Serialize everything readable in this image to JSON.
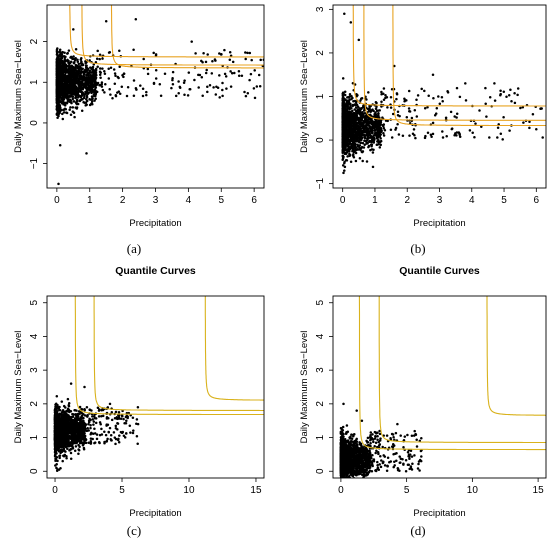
{
  "chart_data": [
    {
      "type": "scatter",
      "panel": "a",
      "caption": "(a)",
      "title": "",
      "xlabel": "Precipitation",
      "ylabel": "Daily Maximum Sea−Level",
      "xlim": [
        -0.3,
        6.3
      ],
      "ylim": [
        -1.6,
        2.9
      ],
      "xticks": [
        "0",
        "1",
        "2",
        "3",
        "4",
        "5",
        "6"
      ],
      "yticks": [
        "−1",
        "0",
        "1",
        "2"
      ],
      "grid": false,
      "point_color": "#000000",
      "curve_color": "#e8a322",
      "scatter": {
        "cluster_x_range": [
          0,
          1.2
        ],
        "cluster_y_center": 1.0,
        "cluster_y_spread": 0.35,
        "sparse_x_range": [
          1.2,
          6.3
        ],
        "sparse_y_range": [
          0.6,
          1.8
        ],
        "outliers": [
          [
            0.05,
            -1.5
          ],
          [
            0.9,
            -0.75
          ],
          [
            0.1,
            -0.55
          ],
          [
            1.5,
            2.5
          ],
          [
            2.4,
            2.55
          ],
          [
            4.1,
            2.0
          ],
          [
            5.3,
            1.65
          ],
          [
            6.2,
            1.55
          ],
          [
            0.5,
            2.3
          ]
        ]
      },
      "quantile_curves": [
        {
          "vertical_x": 0.38,
          "horizontal_y": 1.62
        },
        {
          "vertical_x": 0.75,
          "horizontal_y": 1.42
        },
        {
          "vertical_x": 1.65,
          "horizontal_y": 1.35
        }
      ]
    },
    {
      "type": "scatter",
      "panel": "b",
      "caption": "(b)",
      "title": "",
      "xlabel": "Precipitation",
      "ylabel": "Daily Maximum Sea−Level",
      "xlim": [
        -0.3,
        6.3
      ],
      "ylim": [
        -1.1,
        3.1
      ],
      "xticks": [
        "0",
        "1",
        "2",
        "3",
        "4",
        "5",
        "6"
      ],
      "yticks": [
        "−1",
        "0",
        "1",
        "2",
        "3"
      ],
      "grid": false,
      "point_color": "#000000",
      "curve_color": "#e8a322",
      "scatter": {
        "cluster_x_range": [
          0,
          1.2
        ],
        "cluster_y_center": 0.3,
        "cluster_y_spread": 0.35,
        "sparse_x_range": [
          1.2,
          6.2
        ],
        "sparse_y_range": [
          0.0,
          1.2
        ],
        "outliers": [
          [
            0.05,
            2.9
          ],
          [
            0.25,
            2.7
          ],
          [
            0.5,
            2.3
          ],
          [
            1.6,
            1.7
          ],
          [
            2.8,
            1.5
          ],
          [
            3.8,
            1.3
          ],
          [
            4.7,
            1.3
          ],
          [
            5.6,
            0.4
          ],
          [
            6.0,
            0.25
          ],
          [
            0.05,
            -0.7
          ]
        ]
      },
      "quantile_curves": [
        {
          "vertical_x": 0.32,
          "horizontal_y": 0.78
        },
        {
          "vertical_x": 0.65,
          "horizontal_y": 0.45
        },
        {
          "vertical_x": 1.55,
          "horizontal_y": 0.33
        }
      ]
    },
    {
      "type": "scatter",
      "panel": "c",
      "caption": "(c)",
      "title": "Quantile Curves",
      "xlabel": "Precipitation",
      "ylabel": "Daily Maximum Sea−Level",
      "xlim": [
        -0.6,
        15.6
      ],
      "ylim": [
        -0.2,
        5.2
      ],
      "xticks": [
        "0",
        "5",
        "10",
        "15"
      ],
      "yticks": [
        "0",
        "1",
        "2",
        "3",
        "4",
        "5"
      ],
      "grid": false,
      "point_color": "#000000",
      "curve_color": "#d9b21c",
      "scatter": {
        "cluster_x_range": [
          0,
          2.2
        ],
        "cluster_y_center": 1.2,
        "cluster_y_spread": 0.35,
        "sparse_x_range": [
          2.2,
          6.2
        ],
        "sparse_y_range": [
          0.8,
          1.9
        ],
        "outliers": [
          [
            0.1,
            0.1
          ],
          [
            0.3,
            0.05
          ],
          [
            1.2,
            2.6
          ],
          [
            2.2,
            2.5
          ],
          [
            4.1,
            2.0
          ],
          [
            6.2,
            1.4
          ]
        ]
      },
      "quantile_curves": [
        {
          "vertical_x": 1.5,
          "horizontal_y": 1.68
        },
        {
          "vertical_x": 2.9,
          "horizontal_y": 1.8
        },
        {
          "vertical_x": 11.2,
          "horizontal_y": 2.1
        }
      ]
    },
    {
      "type": "scatter",
      "panel": "d",
      "caption": "(d)",
      "title": "Quantile Curves",
      "xlabel": "Precipitation",
      "ylabel": "Daily Maximum Sea−Level",
      "xlim": [
        -0.6,
        15.6
      ],
      "ylim": [
        -0.2,
        5.2
      ],
      "xticks": [
        "0",
        "5",
        "10",
        "15"
      ],
      "yticks": [
        "0",
        "1",
        "2",
        "3",
        "4",
        "5"
      ],
      "grid": false,
      "point_color": "#000000",
      "curve_color": "#d9b21c",
      "scatter": {
        "cluster_x_range": [
          0,
          2.2
        ],
        "cluster_y_center": 0.35,
        "cluster_y_spread": 0.33,
        "sparse_x_range": [
          2.2,
          6.2
        ],
        "sparse_y_range": [
          0.0,
          1.2
        ],
        "outliers": [
          [
            0.2,
            2.0
          ],
          [
            1.2,
            1.8
          ],
          [
            1.6,
            1.5
          ],
          [
            4.3,
            1.4
          ],
          [
            6.0,
            0.9
          ],
          [
            0.1,
            -0.1
          ]
        ]
      },
      "quantile_curves": [
        {
          "vertical_x": 1.4,
          "horizontal_y": 0.64
        },
        {
          "vertical_x": 2.9,
          "horizontal_y": 0.85
        },
        {
          "vertical_x": 11.1,
          "horizontal_y": 1.65
        }
      ]
    }
  ]
}
